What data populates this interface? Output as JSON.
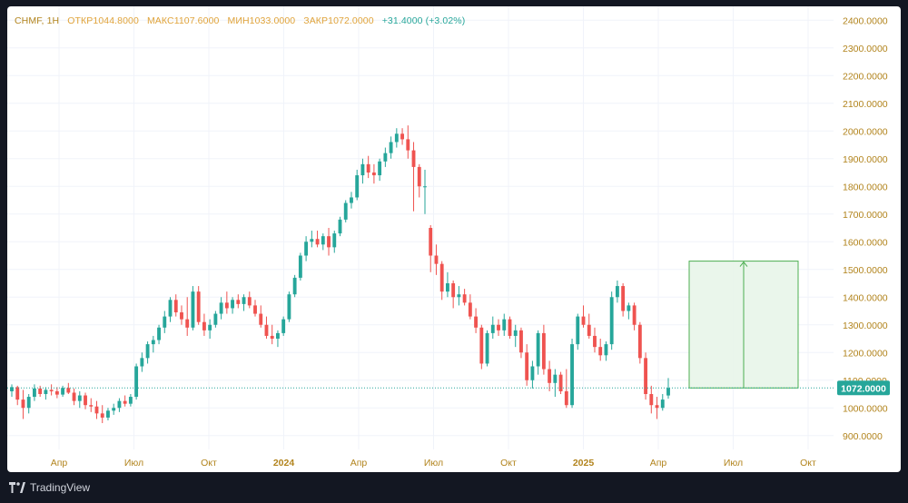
{
  "header": {
    "symbol": "CHMF, 1H",
    "open_label": "ОТКР",
    "open_value": "1044.8000",
    "high_label": "МАКС",
    "high_value": "1107.6000",
    "low_label": "МИН",
    "low_value": "1033.0000",
    "close_label": "ЗАКР",
    "close_value": "1072.0000",
    "change": "+31.4000 (+3.02%)"
  },
  "footer": {
    "brand": "TradingView"
  },
  "colors": {
    "up": "#26a69a",
    "down": "#ef5350",
    "grid": "#f0f3fa",
    "axis_text": "#b2841d",
    "price_line": "#26a69a",
    "projection_fill": "#e8f5e9",
    "projection_line": "#4caf50"
  },
  "chart_data": {
    "type": "candlestick",
    "price_axis": {
      "min": 850,
      "max": 2450,
      "ticks": [
        "900.0000",
        "1000.0000",
        "1100.0000",
        "1200.0000",
        "1300.0000",
        "1400.0000",
        "1500.0000",
        "1600.0000",
        "1700.0000",
        "1800.0000",
        "1900.0000",
        "2000.0000",
        "2100.0000",
        "2200.0000",
        "2300.0000",
        "2400.0000"
      ]
    },
    "time_axis": {
      "labels": [
        "Апр",
        "Июл",
        "Окт",
        "2024",
        "Апр",
        "Июл",
        "Окт",
        "2025",
        "Апр",
        "Июл",
        "Окт"
      ],
      "bold": [
        "2024",
        "2025"
      ]
    },
    "last_price": "1072.0000",
    "projection": {
      "from": 1072,
      "to": 1530
    },
    "candles": [
      [
        1060,
        1085,
        1040,
        1075
      ],
      [
        1075,
        1080,
        1010,
        1030
      ],
      [
        1030,
        1065,
        960,
        1000
      ],
      [
        1000,
        1050,
        980,
        1040
      ],
      [
        1040,
        1085,
        1025,
        1070
      ],
      [
        1070,
        1080,
        1040,
        1050
      ],
      [
        1050,
        1075,
        1030,
        1065
      ],
      [
        1065,
        1085,
        1045,
        1060
      ],
      [
        1060,
        1075,
        1035,
        1048
      ],
      [
        1048,
        1080,
        1040,
        1072
      ],
      [
        1072,
        1090,
        1050,
        1055
      ],
      [
        1055,
        1070,
        1010,
        1025
      ],
      [
        1025,
        1060,
        1000,
        1045
      ],
      [
        1045,
        1055,
        995,
        1010
      ],
      [
        1010,
        1035,
        985,
        1005
      ],
      [
        1005,
        1025,
        960,
        980
      ],
      [
        980,
        1010,
        945,
        965
      ],
      [
        965,
        1000,
        955,
        990
      ],
      [
        990,
        1015,
        975,
        1000
      ],
      [
        1000,
        1035,
        985,
        1025
      ],
      [
        1025,
        1045,
        1005,
        1015
      ],
      [
        1015,
        1050,
        1005,
        1040
      ],
      [
        1040,
        1160,
        1030,
        1150
      ],
      [
        1150,
        1200,
        1130,
        1180
      ],
      [
        1180,
        1240,
        1160,
        1230
      ],
      [
        1230,
        1260,
        1200,
        1245
      ],
      [
        1245,
        1300,
        1230,
        1290
      ],
      [
        1290,
        1350,
        1270,
        1330
      ],
      [
        1330,
        1400,
        1310,
        1390
      ],
      [
        1390,
        1410,
        1330,
        1345
      ],
      [
        1345,
        1370,
        1300,
        1320
      ],
      [
        1320,
        1400,
        1260,
        1290
      ],
      [
        1290,
        1440,
        1280,
        1420
      ],
      [
        1420,
        1440,
        1300,
        1310
      ],
      [
        1310,
        1340,
        1260,
        1280
      ],
      [
        1280,
        1320,
        1250,
        1300
      ],
      [
        1300,
        1350,
        1290,
        1340
      ],
      [
        1340,
        1400,
        1320,
        1380
      ],
      [
        1380,
        1420,
        1340,
        1360
      ],
      [
        1360,
        1400,
        1340,
        1390
      ],
      [
        1390,
        1410,
        1360,
        1375
      ],
      [
        1375,
        1410,
        1350,
        1400
      ],
      [
        1400,
        1420,
        1360,
        1370
      ],
      [
        1370,
        1390,
        1330,
        1340
      ],
      [
        1340,
        1370,
        1290,
        1300
      ],
      [
        1300,
        1330,
        1250,
        1260
      ],
      [
        1260,
        1300,
        1230,
        1250
      ],
      [
        1250,
        1280,
        1220,
        1270
      ],
      [
        1270,
        1330,
        1260,
        1320
      ],
      [
        1320,
        1420,
        1310,
        1410
      ],
      [
        1410,
        1480,
        1400,
        1470
      ],
      [
        1470,
        1560,
        1460,
        1550
      ],
      [
        1550,
        1620,
        1530,
        1600
      ],
      [
        1600,
        1640,
        1580,
        1610
      ],
      [
        1610,
        1640,
        1580,
        1590
      ],
      [
        1590,
        1630,
        1570,
        1620
      ],
      [
        1620,
        1650,
        1550,
        1580
      ],
      [
        1580,
        1640,
        1560,
        1630
      ],
      [
        1630,
        1690,
        1620,
        1680
      ],
      [
        1680,
        1750,
        1670,
        1740
      ],
      [
        1740,
        1780,
        1720,
        1760
      ],
      [
        1760,
        1860,
        1750,
        1840
      ],
      [
        1840,
        1900,
        1810,
        1880
      ],
      [
        1880,
        1910,
        1830,
        1850
      ],
      [
        1850,
        1880,
        1810,
        1840
      ],
      [
        1840,
        1900,
        1820,
        1890
      ],
      [
        1890,
        1940,
        1870,
        1920
      ],
      [
        1920,
        1980,
        1900,
        1960
      ],
      [
        1960,
        2010,
        1940,
        1990
      ],
      [
        1990,
        2010,
        1950,
        1970
      ],
      [
        1970,
        2020,
        1900,
        1930
      ],
      [
        1930,
        1960,
        1710,
        1870
      ],
      [
        1870,
        1880,
        1760,
        1800
      ],
      [
        1800,
        1860,
        1700,
        1800
      ],
      [
        1650,
        1660,
        1490,
        1550
      ],
      [
        1550,
        1590,
        1480,
        1520
      ],
      [
        1520,
        1530,
        1390,
        1420
      ],
      [
        1420,
        1490,
        1400,
        1450
      ],
      [
        1450,
        1460,
        1360,
        1400
      ],
      [
        1400,
        1440,
        1370,
        1410
      ],
      [
        1410,
        1430,
        1370,
        1380
      ],
      [
        1380,
        1410,
        1320,
        1330
      ],
      [
        1330,
        1360,
        1270,
        1290
      ],
      [
        1290,
        1300,
        1140,
        1160
      ],
      [
        1160,
        1280,
        1150,
        1270
      ],
      [
        1270,
        1330,
        1250,
        1300
      ],
      [
        1300,
        1320,
        1260,
        1280
      ],
      [
        1280,
        1340,
        1260,
        1320
      ],
      [
        1320,
        1330,
        1250,
        1260
      ],
      [
        1260,
        1300,
        1220,
        1280
      ],
      [
        1280,
        1290,
        1180,
        1200
      ],
      [
        1200,
        1230,
        1080,
        1100
      ],
      [
        1100,
        1170,
        1070,
        1150
      ],
      [
        1150,
        1280,
        1120,
        1270
      ],
      [
        1270,
        1300,
        1120,
        1140
      ],
      [
        1140,
        1170,
        1060,
        1090
      ],
      [
        1090,
        1140,
        1040,
        1120
      ],
      [
        1120,
        1130,
        1050,
        1060
      ],
      [
        1060,
        1140,
        1000,
        1010
      ],
      [
        1010,
        1250,
        1000,
        1230
      ],
      [
        1230,
        1340,
        1210,
        1330
      ],
      [
        1330,
        1370,
        1290,
        1300
      ],
      [
        1300,
        1340,
        1250,
        1260
      ],
      [
        1260,
        1290,
        1200,
        1220
      ],
      [
        1220,
        1250,
        1170,
        1190
      ],
      [
        1190,
        1240,
        1170,
        1230
      ],
      [
        1230,
        1420,
        1210,
        1400
      ],
      [
        1400,
        1460,
        1380,
        1440
      ],
      [
        1440,
        1450,
        1330,
        1350
      ],
      [
        1350,
        1380,
        1320,
        1370
      ],
      [
        1370,
        1380,
        1280,
        1300
      ],
      [
        1300,
        1310,
        1160,
        1180
      ],
      [
        1180,
        1200,
        1030,
        1050
      ],
      [
        1050,
        1080,
        980,
        1010
      ],
      [
        1010,
        1040,
        960,
        1000
      ],
      [
        1000,
        1050,
        990,
        1030
      ],
      [
        1044.8,
        1107.6,
        1033,
        1072
      ]
    ]
  }
}
